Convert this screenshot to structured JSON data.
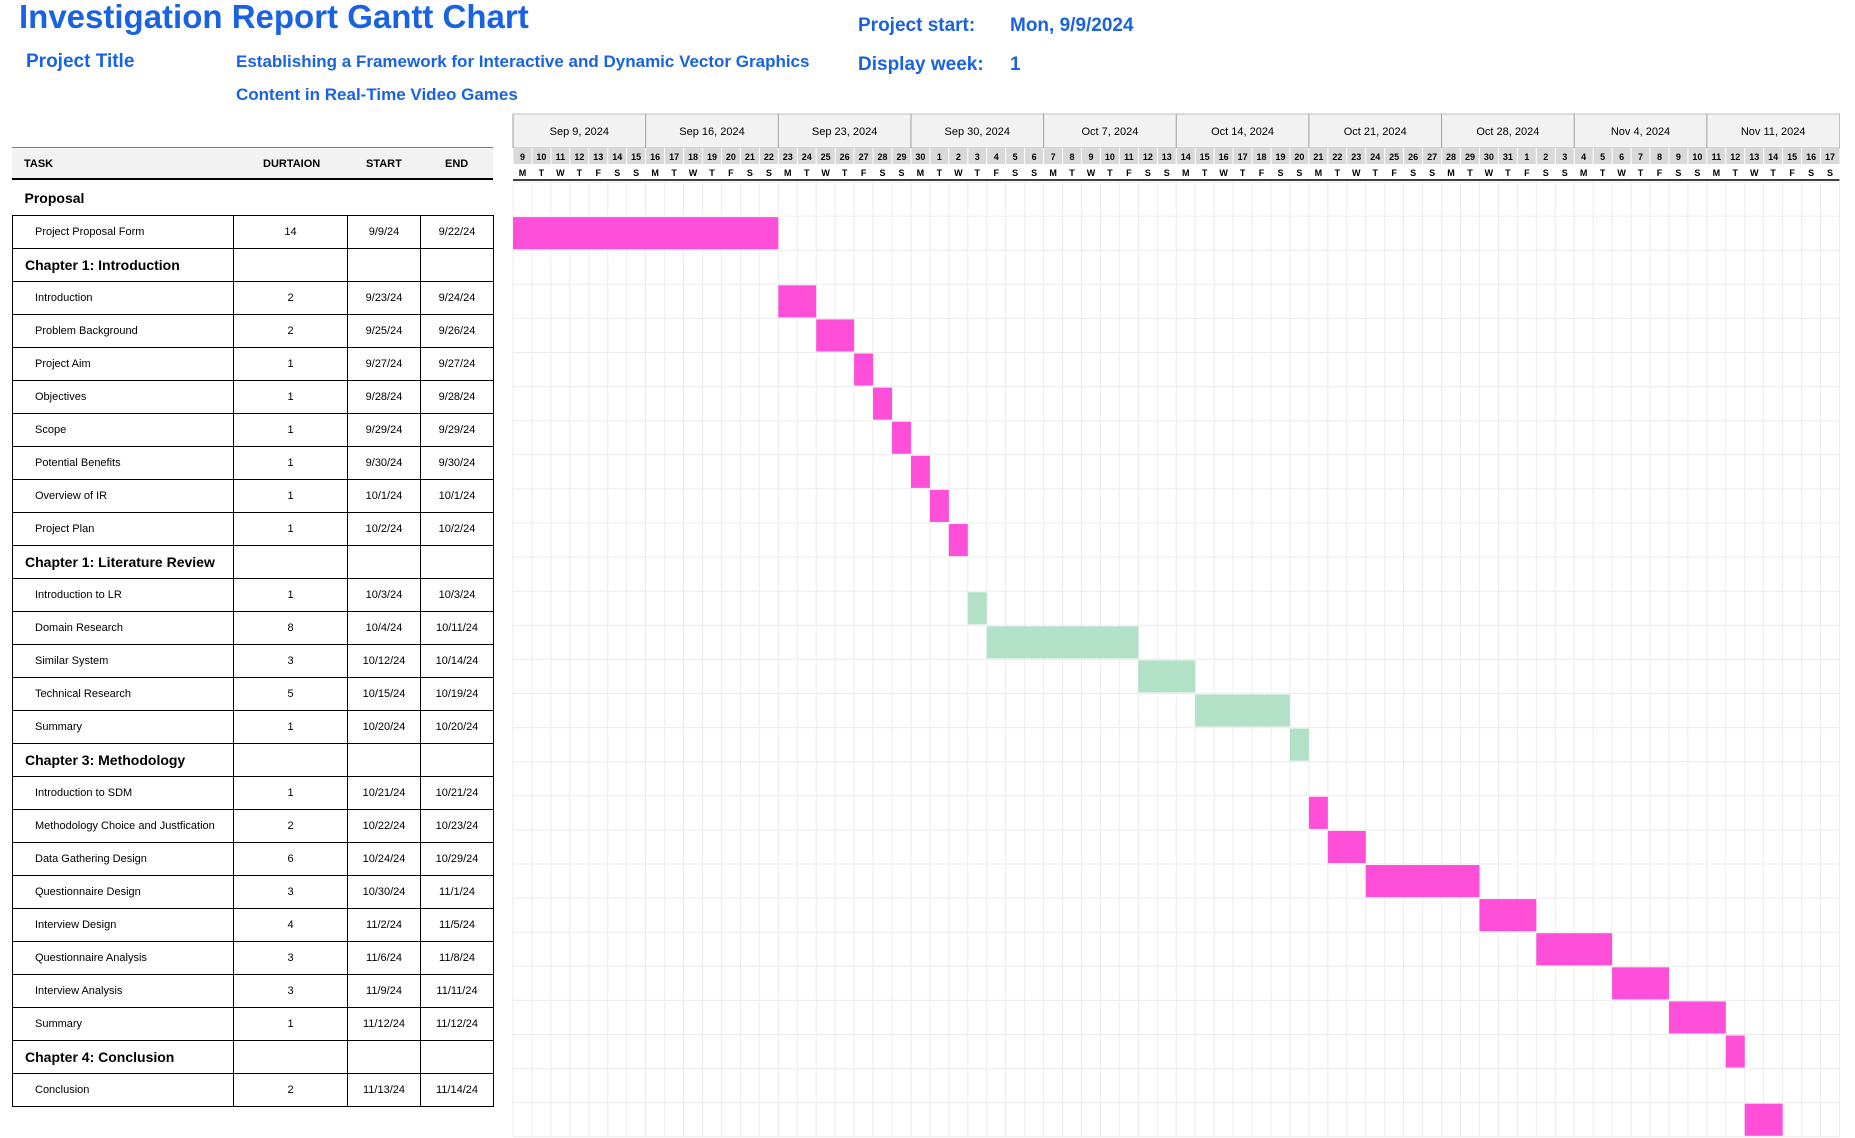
{
  "header": {
    "title": "Investigation Report Gantt Chart",
    "project_title_label": "Project Title",
    "project_title_line1": "Establishing a Framework for Interactive and Dynamic Vector Graphics",
    "project_title_line2": "Content in Real-Time Video Games",
    "project_start_label": "Project start:",
    "project_start_value": "Mon, 9/9/2024",
    "display_week_label": "Display week:",
    "display_week_value": "1"
  },
  "table_headers": {
    "task": "TASK",
    "duration": "DURTAION",
    "start": "START",
    "end": "END"
  },
  "colors": {
    "pink": "#ff4fd8",
    "green": "#b3e1c7",
    "accent": "#1a63e0"
  },
  "chart_data": {
    "type": "gantt",
    "start_date": "2024-09-09",
    "weeks": [
      "Sep 9, 2024",
      "Sep 16, 2024",
      "Sep 23, 2024",
      "Sep 30, 2024",
      "Oct 7, 2024",
      "Oct 14, 2024",
      "Oct 21, 2024",
      "Oct 28, 2024",
      "Nov 4, 2024",
      "Nov 11, 2024"
    ],
    "day_numbers": [
      9,
      10,
      11,
      12,
      13,
      14,
      15,
      16,
      17,
      18,
      19,
      20,
      21,
      22,
      23,
      24,
      25,
      26,
      27,
      28,
      29,
      30,
      1,
      2,
      3,
      4,
      5,
      6,
      7,
      8,
      9,
      10,
      11,
      12,
      13,
      14,
      15,
      16,
      17,
      18,
      19,
      20,
      21,
      22,
      23,
      24,
      25,
      26,
      27,
      28,
      29,
      30,
      31,
      1,
      2,
      3,
      4,
      5,
      6,
      7,
      8,
      9,
      10,
      11,
      12,
      13,
      14,
      15,
      16,
      17
    ],
    "day_letters": [
      "M",
      "T",
      "W",
      "T",
      "F",
      "S",
      "S"
    ],
    "rows": [
      {
        "type": "section",
        "name": "Proposal"
      },
      {
        "type": "task",
        "name": "Project Proposal Form",
        "duration": "14",
        "start": "9/9/24",
        "end": "9/22/24",
        "color": "#ff4fd8"
      },
      {
        "type": "section",
        "name": "Chapter 1: Introduction"
      },
      {
        "type": "task",
        "name": "Introduction",
        "duration": "2",
        "start": "9/23/24",
        "end": "9/24/24",
        "color": "#ff4fd8"
      },
      {
        "type": "task",
        "name": "Problem Background",
        "duration": "2",
        "start": "9/25/24",
        "end": "9/26/24",
        "color": "#ff4fd8"
      },
      {
        "type": "task",
        "name": "Project Aim",
        "duration": "1",
        "start": "9/27/24",
        "end": "9/27/24",
        "color": "#ff4fd8"
      },
      {
        "type": "task",
        "name": "Objectives",
        "duration": "1",
        "start": "9/28/24",
        "end": "9/28/24",
        "color": "#ff4fd8"
      },
      {
        "type": "task",
        "name": "Scope",
        "duration": "1",
        "start": "9/29/24",
        "end": "9/29/24",
        "color": "#ff4fd8"
      },
      {
        "type": "task",
        "name": "Potential Benefits",
        "duration": "1",
        "start": "9/30/24",
        "end": "9/30/24",
        "color": "#ff4fd8"
      },
      {
        "type": "task",
        "name": "Overview of IR",
        "duration": "1",
        "start": "10/1/24",
        "end": "10/1/24",
        "color": "#ff4fd8"
      },
      {
        "type": "task",
        "name": "Project Plan",
        "duration": "1",
        "start": "10/2/24",
        "end": "10/2/24",
        "color": "#ff4fd8"
      },
      {
        "type": "section",
        "name": "Chapter 1: Literature Review"
      },
      {
        "type": "task",
        "name": "Introduction to LR",
        "duration": "1",
        "start": "10/3/24",
        "end": "10/3/24",
        "color": "#b3e1c7"
      },
      {
        "type": "task",
        "name": "Domain Research",
        "duration": "8",
        "start": "10/4/24",
        "end": "10/11/24",
        "color": "#b3e1c7"
      },
      {
        "type": "task",
        "name": "Similar System",
        "duration": "3",
        "start": "10/12/24",
        "end": "10/14/24",
        "color": "#b3e1c7"
      },
      {
        "type": "task",
        "name": "Technical Research",
        "duration": "5",
        "start": "10/15/24",
        "end": "10/19/24",
        "color": "#b3e1c7"
      },
      {
        "type": "task",
        "name": "Summary",
        "duration": "1",
        "start": "10/20/24",
        "end": "10/20/24",
        "color": "#b3e1c7"
      },
      {
        "type": "section",
        "name": "Chapter 3: Methodology"
      },
      {
        "type": "task",
        "name": "Introduction to SDM",
        "duration": "1",
        "start": "10/21/24",
        "end": "10/21/24",
        "color": "#ff4fd8"
      },
      {
        "type": "task",
        "name": "Methodology Choice and Justfication",
        "duration": "2",
        "start": "10/22/24",
        "end": "10/23/24",
        "color": "#ff4fd8"
      },
      {
        "type": "task",
        "name": "Data Gathering Design",
        "duration": "6",
        "start": "10/24/24",
        "end": "10/29/24",
        "color": "#ff4fd8"
      },
      {
        "type": "task",
        "name": "Questionnaire Design",
        "duration": "3",
        "start": "10/30/24",
        "end": "11/1/24",
        "color": "#ff4fd8"
      },
      {
        "type": "task",
        "name": "Interview Design",
        "duration": "4",
        "start": "11/2/24",
        "end": "11/5/24",
        "color": "#ff4fd8"
      },
      {
        "type": "task",
        "name": "Questionnaire Analysis",
        "duration": "3",
        "start": "11/6/24",
        "end": "11/8/24",
        "color": "#ff4fd8"
      },
      {
        "type": "task",
        "name": "Interview Analysis",
        "duration": "3",
        "start": "11/9/24",
        "end": "11/11/24",
        "color": "#ff4fd8"
      },
      {
        "type": "task",
        "name": "Summary",
        "duration": "1",
        "start": "11/12/24",
        "end": "11/12/24",
        "color": "#ff4fd8"
      },
      {
        "type": "section",
        "name": "Chapter 4: Conclusion"
      },
      {
        "type": "task",
        "name": "Conclusion",
        "duration": "2",
        "start": "11/13/24",
        "end": "11/14/24",
        "color": "#ff4fd8"
      }
    ]
  }
}
